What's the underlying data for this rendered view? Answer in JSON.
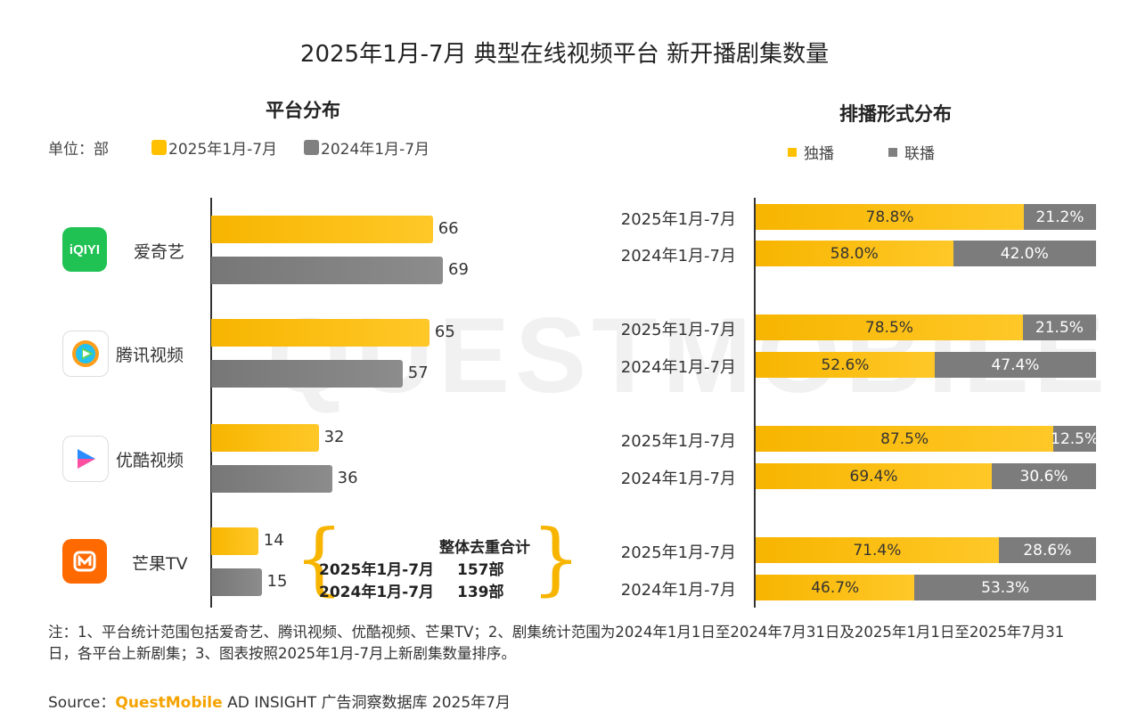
{
  "title": "2025年1月-7月 典型在线视频平台 新开播剧集数量",
  "left_chart": {
    "subtitle": "平台分布",
    "unit": "单位：部",
    "legend": [
      {
        "label": "2025年1月-7月",
        "color": "#FFC000"
      },
      {
        "label": "2024年1月-7月",
        "color": "#808080"
      }
    ]
  },
  "right_chart": {
    "subtitle": "排播形式分布",
    "legend": [
      {
        "label": "独播",
        "color": "#FFC000"
      },
      {
        "label": "联播",
        "color": "#808080"
      }
    ]
  },
  "platforms": [
    {
      "name": "爱奇艺",
      "icon": "iqiyi-logo",
      "logo_text": "iQIYI",
      "logo_color": "#20C253"
    },
    {
      "name": "腾讯视频",
      "icon": "tencent-video-logo",
      "logo_color": "#1DA1F2"
    },
    {
      "name": "优酷视频",
      "icon": "youku-logo",
      "logo_color": "#2A8CFF"
    },
    {
      "name": "芒果TV",
      "icon": "mango-tv-logo",
      "logo_color": "#FF6A00"
    }
  ],
  "dedup_total": {
    "title": "整体去重合计",
    "rows": [
      {
        "period": "2025年1月-7月",
        "value": "157部"
      },
      {
        "period": "2024年1月-7月",
        "value": "139部"
      }
    ]
  },
  "chart_data": [
    {
      "type": "bar",
      "orientation": "horizontal",
      "title": "平台分布",
      "categories": [
        "爱奇艺",
        "腾讯视频",
        "优酷视频",
        "芒果TV"
      ],
      "series": [
        {
          "name": "2025年1月-7月",
          "values": [
            66,
            65,
            32,
            14
          ],
          "color": "#FFC000"
        },
        {
          "name": "2024年1月-7月",
          "values": [
            69,
            57,
            36,
            15
          ],
          "color": "#808080"
        }
      ],
      "xlim": [
        0,
        69
      ],
      "grid": false,
      "legend_position": "top-left"
    },
    {
      "type": "bar",
      "orientation": "horizontal",
      "stacked": true,
      "percent": true,
      "title": "排播形式分布",
      "rows": [
        {
          "label": "2025年1月-7月",
          "exclusive": 78.8,
          "shared": 21.2
        },
        {
          "label": "2024年1月-7月",
          "exclusive": 58.0,
          "shared": 42.0
        },
        {
          "label": "2025年1月-7月",
          "exclusive": 78.5,
          "shared": 21.5
        },
        {
          "label": "2024年1月-7月",
          "exclusive": 52.6,
          "shared": 47.4
        },
        {
          "label": "2025年1月-7月",
          "exclusive": 87.5,
          "shared": 12.5
        },
        {
          "label": "2024年1月-7月",
          "exclusive": 69.4,
          "shared": 30.6
        },
        {
          "label": "2025年1月-7月",
          "exclusive": 71.4,
          "shared": 28.6
        },
        {
          "label": "2024年1月-7月",
          "exclusive": 46.7,
          "shared": 53.3
        }
      ],
      "series": [
        {
          "name": "独播",
          "color": "#FFC000"
        },
        {
          "name": "联播",
          "color": "#808080"
        }
      ],
      "xlim": [
        0,
        100
      ],
      "legend_position": "top-center"
    }
  ],
  "note": "注：1、平台统计范围包括爱奇艺、腾讯视频、优酷视频、芒果TV；2、剧集统计范围为2024年1月1日至2024年7月31日及2025年1月1日至2025年7月31日，各平台上新剧集；3、图表按照2025年1月-7月上新剧集数量排序。",
  "source": {
    "prefix": "Source：",
    "brand": "QuestMobile",
    "rest": " AD INSIGHT 广告洞察数据库 2025年7月"
  },
  "watermark_text": "QUESTMOBILE"
}
